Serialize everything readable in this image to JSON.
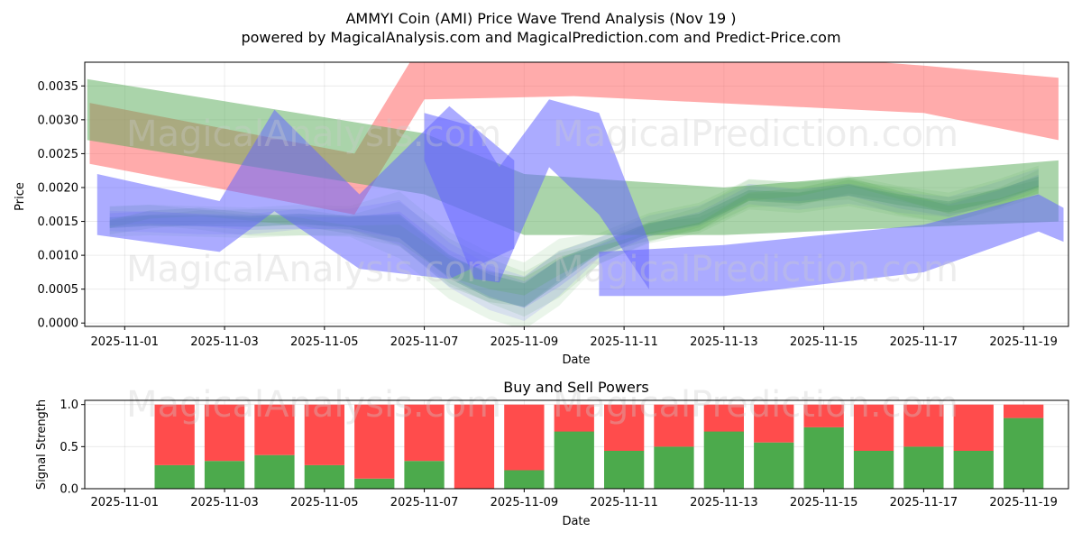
{
  "chart_data": [
    {
      "type": "area",
      "title_line1": "AMMYI Coin (AMI) Price Wave Trend Analysis (Nov 19 )",
      "title_line2": "powered by MagicalAnalysis.com and MagicalPrediction.com and Predict-Price.com",
      "xlabel": "Date",
      "ylabel": "Price",
      "ylim": [
        -5e-05,
        0.00385
      ],
      "xlim_days": [
        -0.8,
        18.9
      ],
      "x_ticks": [
        "2025-11-01",
        "2025-11-03",
        "2025-11-05",
        "2025-11-07",
        "2025-11-09",
        "2025-11-11",
        "2025-11-13",
        "2025-11-15",
        "2025-11-17",
        "2025-11-19"
      ],
      "x_tick_days": [
        0,
        2,
        4,
        6,
        8,
        10,
        12,
        14,
        16,
        18
      ],
      "y_ticks": [
        "0.0000",
        "0.0005",
        "0.0010",
        "0.0015",
        "0.0020",
        "0.0025",
        "0.0030",
        "0.0035"
      ],
      "y_tick_values": [
        0,
        0.0005,
        0.001,
        0.0015,
        0.002,
        0.0025,
        0.003,
        0.0035
      ],
      "grid": true,
      "color_red": "#ff6666",
      "color_green": "#55aa55",
      "color_blue": "#6666ff",
      "color_teal": "#2e7d7d",
      "bands": [
        {
          "name": "red-trend-band",
          "color": "#ff6666",
          "opacity": 0.55,
          "x": [
            -0.7,
            4.6,
            6.0,
            9.0,
            16.0,
            18.7
          ],
          "low": [
            0.00235,
            0.0016,
            0.0033,
            0.00335,
            0.0031,
            0.0027
          ],
          "high": [
            0.00325,
            0.0025,
            0.0042,
            0.0042,
            0.0038,
            0.00362
          ]
        },
        {
          "name": "green-trend-band",
          "color": "#55aa55",
          "opacity": 0.5,
          "x": [
            -0.75,
            6.0,
            8.0,
            10.0,
            12.0,
            18.7
          ],
          "low": [
            0.0027,
            0.0019,
            0.0013,
            0.0013,
            0.0013,
            0.0015
          ],
          "high": [
            0.0036,
            0.0028,
            0.0022,
            0.0021,
            0.002,
            0.0024
          ]
        },
        {
          "name": "blue-wave-left-band",
          "color": "#6666ff",
          "opacity": 0.55,
          "x": [
            -0.55,
            1.9,
            3.0,
            4.7,
            6.5,
            7.8
          ],
          "low": [
            0.0013,
            0.00105,
            0.00165,
            0.0008,
            0.00065,
            0.0011
          ],
          "high": [
            0.0022,
            0.0018,
            0.00315,
            0.0019,
            0.0032,
            0.0024
          ]
        },
        {
          "name": "blue-wave-mid-band",
          "color": "#6666ff",
          "opacity": 0.55,
          "x": [
            6.0,
            7.0,
            7.5,
            8.5,
            9.5,
            10.5
          ],
          "low": [
            0.0024,
            0.00065,
            0.0006,
            0.0023,
            0.0016,
            0.0005
          ],
          "high": [
            0.0031,
            0.0029,
            0.0023,
            0.0033,
            0.0031,
            0.0012
          ]
        },
        {
          "name": "blue-trend-band",
          "color": "#6666ff",
          "opacity": 0.55,
          "x": [
            9.5,
            12.0,
            16.0,
            18.3,
            18.8
          ],
          "low": [
            0.0004,
            0.0004,
            0.00075,
            0.00135,
            0.0012
          ],
          "high": [
            0.00105,
            0.00115,
            0.00145,
            0.0019,
            0.0017
          ]
        }
      ],
      "ensemble_days": [
        -0.3,
        0.5,
        1.5,
        2.5,
        3.5,
        4.5,
        5.5,
        6.5,
        7.3,
        8.0,
        8.7,
        9.5,
        10.5,
        11.5,
        12.5,
        13.5,
        14.5,
        15.5,
        16.5,
        17.5,
        18.3
      ],
      "ensemble_center": [
        0.0015,
        0.00152,
        0.0015,
        0.00148,
        0.00152,
        0.0015,
        0.00145,
        0.00085,
        0.00055,
        0.0004,
        0.00075,
        0.0011,
        0.0014,
        0.00155,
        0.0019,
        0.00185,
        0.00195,
        0.0018,
        0.0017,
        0.0019,
        0.0021
      ]
    },
    {
      "type": "bar",
      "title": "Buy and Sell Powers",
      "xlabel": "Date",
      "ylabel": "Signal Strength",
      "ylim": [
        0,
        1.05
      ],
      "xlim_days": [
        -0.8,
        18.9
      ],
      "x_ticks": [
        "2025-11-01",
        "2025-11-03",
        "2025-11-05",
        "2025-11-07",
        "2025-11-09",
        "2025-11-11",
        "2025-11-13",
        "2025-11-15",
        "2025-11-17",
        "2025-11-19"
      ],
      "x_tick_days": [
        0,
        2,
        4,
        6,
        8,
        10,
        12,
        14,
        16,
        18
      ],
      "y_ticks": [
        "0.0",
        "0.5",
        "1.0"
      ],
      "y_tick_values": [
        0,
        0.5,
        1.0
      ],
      "buy_color": "#4caa4c",
      "sell_color": "#ff4c4c",
      "categories": [
        "2025-11-02",
        "2025-11-03",
        "2025-11-04",
        "2025-11-05",
        "2025-11-06",
        "2025-11-07",
        "2025-11-08",
        "2025-11-09",
        "2025-11-10",
        "2025-11-11",
        "2025-11-12",
        "2025-11-13",
        "2025-11-14",
        "2025-11-15",
        "2025-11-16",
        "2025-11-17",
        "2025-11-18",
        "2025-11-19"
      ],
      "bar_days": [
        1,
        2,
        3,
        4,
        5,
        6,
        7,
        8,
        9,
        10,
        11,
        12,
        13,
        14,
        15,
        16,
        17,
        18
      ],
      "series": [
        {
          "name": "Buy",
          "values": [
            0.28,
            0.33,
            0.4,
            0.28,
            0.12,
            0.33,
            0.0,
            0.22,
            0.68,
            0.45,
            0.5,
            0.68,
            0.55,
            0.73,
            0.45,
            0.5,
            0.45,
            0.84
          ]
        },
        {
          "name": "Sell",
          "values": [
            0.72,
            0.67,
            0.6,
            0.72,
            0.88,
            0.67,
            1.0,
            0.78,
            0.32,
            0.55,
            0.5,
            0.32,
            0.45,
            0.27,
            0.55,
            0.5,
            0.55,
            0.16
          ]
        }
      ]
    }
  ],
  "watermarks": {
    "analysis": "MagicalAnalysis.com",
    "prediction": "MagicalPrediction.com"
  }
}
